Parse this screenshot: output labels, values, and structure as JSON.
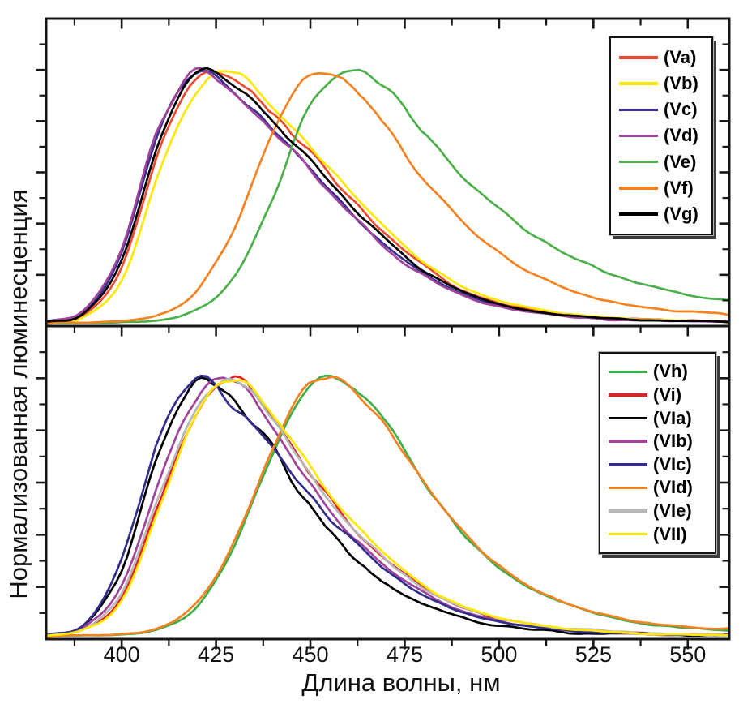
{
  "figure": {
    "xlabel": "Длина волны, нм",
    "ylabel": "Нормализованная люминесценция",
    "x_tick_labels": [
      "400",
      "425",
      "450",
      "475",
      "500",
      "525",
      "550"
    ],
    "background_color": "#ffffff",
    "axis_color": "#161616"
  },
  "chart_data": [
    {
      "type": "line",
      "panel": "top",
      "xlabel": "Длина волны, нм",
      "ylabel": "Нормализованная люминесценция",
      "x_range_nm": [
        380,
        561
      ],
      "x_ticks": [
        400,
        425,
        450,
        475,
        500,
        525,
        550
      ],
      "y_axis": "normalized intensity (0-1), no tick labels",
      "grid": "off",
      "legend_position": "upper-right",
      "x": [
        380,
        390,
        400,
        410,
        420,
        430,
        440,
        450,
        460,
        470,
        480,
        490,
        500,
        510,
        520,
        530,
        540,
        550,
        560
      ],
      "series": [
        {
          "name": "(Va)",
          "color": "#ee4a30",
          "peak_nm": 423,
          "seed": 11,
          "noise": 1.2,
          "values": [
            0.011,
            0.035,
            0.22,
            0.68,
            0.97,
            0.95,
            0.815,
            0.66,
            0.5,
            0.345,
            0.225,
            0.135,
            0.082,
            0.051,
            0.033,
            0.022,
            0.016,
            0.012,
            0.01
          ]
        },
        {
          "name": "(Vb)",
          "color": "#ffe800",
          "peak_nm": 429,
          "seed": 23,
          "noise": 0.8,
          "values": [
            0.009,
            0.028,
            0.17,
            0.6,
            0.93,
            1.0,
            0.85,
            0.7,
            0.535,
            0.375,
            0.245,
            0.15,
            0.091,
            0.056,
            0.036,
            0.024,
            0.016,
            0.012,
            0.009
          ]
        },
        {
          "name": "(Vc)",
          "color": "#3b2f92",
          "peak_nm": 418,
          "seed": 37,
          "noise": 0.8,
          "values": [
            0.013,
            0.045,
            0.28,
            0.77,
            1.0,
            0.91,
            0.77,
            0.615,
            0.455,
            0.31,
            0.2,
            0.12,
            0.071,
            0.044,
            0.028,
            0.019,
            0.013,
            0.01,
            0.008
          ]
        },
        {
          "name": "(Vd)",
          "color": "#a0459b",
          "peak_nm": 417,
          "seed": 41,
          "noise": 1.3,
          "values": [
            0.014,
            0.048,
            0.3,
            0.79,
            1.0,
            0.9,
            0.76,
            0.6,
            0.44,
            0.3,
            0.19,
            0.115,
            0.068,
            0.042,
            0.027,
            0.018,
            0.012,
            0.009,
            0.007
          ]
        },
        {
          "name": "(Ve)",
          "color": "#4cb04a",
          "peak_nm": 461,
          "seed": 53,
          "noise": 1.0,
          "values": [
            0.003,
            0.003,
            0.006,
            0.015,
            0.055,
            0.19,
            0.5,
            0.86,
            1.0,
            0.93,
            0.76,
            0.585,
            0.45,
            0.345,
            0.26,
            0.195,
            0.15,
            0.115,
            0.09
          ]
        },
        {
          "name": "(Vf)",
          "color": "#f58220",
          "peak_nm": 453,
          "seed": 67,
          "noise": 1.0,
          "values": [
            0.003,
            0.004,
            0.01,
            0.035,
            0.13,
            0.38,
            0.75,
            0.985,
            0.955,
            0.78,
            0.57,
            0.41,
            0.285,
            0.19,
            0.125,
            0.085,
            0.062,
            0.048,
            0.04
          ]
        },
        {
          "name": "(Vg)",
          "color": "#000000",
          "peak_nm": 421,
          "seed": 79,
          "noise": 0.9,
          "values": [
            0.012,
            0.04,
            0.25,
            0.72,
            0.99,
            0.93,
            0.795,
            0.64,
            0.475,
            0.33,
            0.21,
            0.128,
            0.076,
            0.047,
            0.03,
            0.02,
            0.014,
            0.011,
            0.009
          ]
        }
      ]
    },
    {
      "type": "line",
      "panel": "bottom",
      "xlabel": "Длина волны, нм",
      "ylabel": "Нормализованная люминесценция",
      "x_range_nm": [
        380,
        561
      ],
      "x_ticks": [
        400,
        425,
        450,
        475,
        500,
        525,
        550
      ],
      "y_axis": "normalized intensity (0-1), no tick labels",
      "grid": "off",
      "legend_position": "upper-right",
      "x": [
        380,
        390,
        400,
        410,
        420,
        430,
        440,
        450,
        460,
        470,
        480,
        490,
        500,
        510,
        520,
        530,
        540,
        550,
        560
      ],
      "series": [
        {
          "name": "(Vh)",
          "color": "#3fae49",
          "peak_nm": 456,
          "seed": 91,
          "noise": 1.0,
          "values": [
            0.003,
            0.004,
            0.009,
            0.03,
            0.115,
            0.35,
            0.71,
            0.97,
            0.98,
            0.83,
            0.6,
            0.41,
            0.27,
            0.175,
            0.113,
            0.073,
            0.049,
            0.035,
            0.026
          ]
        },
        {
          "name": "(Vi)",
          "color": "#e81b22",
          "peak_nm": 429,
          "seed": 103,
          "noise": 1.1,
          "values": [
            0.008,
            0.028,
            0.15,
            0.52,
            0.87,
            1.0,
            0.85,
            0.64,
            0.45,
            0.3,
            0.19,
            0.115,
            0.07,
            0.043,
            0.027,
            0.018,
            0.012,
            0.008,
            0.006
          ]
        },
        {
          "name": "(VIa)",
          "color": "#000000",
          "peak_nm": 420,
          "seed": 117,
          "noise": 1.7,
          "values": [
            0.012,
            0.045,
            0.26,
            0.7,
            0.99,
            0.92,
            0.72,
            0.5,
            0.33,
            0.21,
            0.125,
            0.072,
            0.042,
            0.025,
            0.015,
            0.01,
            0.007,
            0.005,
            0.004
          ]
        },
        {
          "name": "(VIb)",
          "color": "#a0459b",
          "peak_nm": 425,
          "seed": 131,
          "noise": 1.2,
          "values": [
            0.01,
            0.036,
            0.2,
            0.6,
            0.93,
            0.99,
            0.8,
            0.585,
            0.41,
            0.27,
            0.17,
            0.1,
            0.061,
            0.038,
            0.024,
            0.016,
            0.011,
            0.008,
            0.006
          ]
        },
        {
          "name": "(VIc)",
          "color": "#332d8d",
          "peak_nm": 418,
          "seed": 149,
          "noise": 1.4,
          "values": [
            0.013,
            0.05,
            0.3,
            0.78,
            1.0,
            0.89,
            0.73,
            0.55,
            0.39,
            0.26,
            0.16,
            0.098,
            0.058,
            0.036,
            0.023,
            0.015,
            0.01,
            0.007,
            0.005
          ]
        },
        {
          "name": "(VId)",
          "color": "#f58220",
          "peak_nm": 453,
          "seed": 163,
          "noise": 1.0,
          "values": [
            0.003,
            0.004,
            0.01,
            0.035,
            0.13,
            0.37,
            0.73,
            0.98,
            0.965,
            0.82,
            0.6,
            0.415,
            0.275,
            0.18,
            0.118,
            0.078,
            0.053,
            0.038,
            0.029
          ]
        },
        {
          "name": "(VIe)",
          "color": "#b7b7b7",
          "peak_nm": 427,
          "seed": 177,
          "noise": 1.2,
          "values": [
            0.009,
            0.031,
            0.17,
            0.54,
            0.89,
            1.0,
            0.83,
            0.625,
            0.44,
            0.3,
            0.19,
            0.115,
            0.071,
            0.045,
            0.029,
            0.02,
            0.014,
            0.01,
            0.008
          ]
        },
        {
          "name": "(VII)",
          "color": "#ffe800",
          "peak_nm": 430,
          "seed": 191,
          "noise": 0.9,
          "values": [
            0.008,
            0.026,
            0.14,
            0.5,
            0.86,
            1.0,
            0.86,
            0.655,
            0.465,
            0.315,
            0.2,
            0.12,
            0.074,
            0.045,
            0.028,
            0.018,
            0.012,
            0.008,
            0.006
          ]
        }
      ]
    }
  ]
}
